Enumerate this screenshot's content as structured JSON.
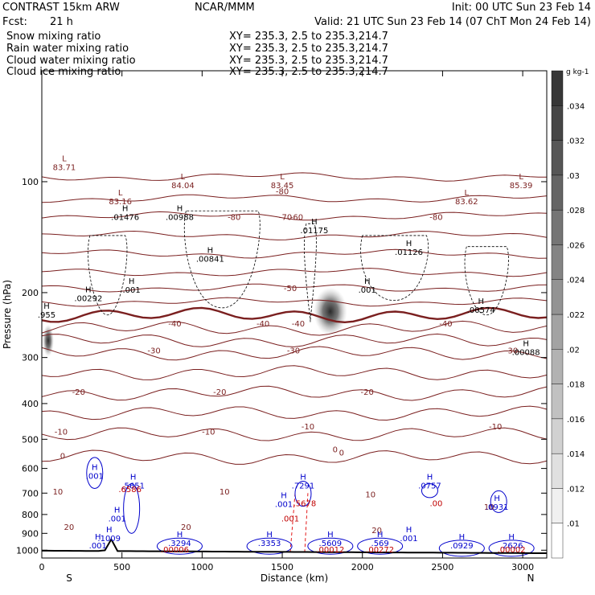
{
  "header": {
    "model": "CONTRAST 15km ARW",
    "org": "NCAR/MMM",
    "init": "Init: 00 UTC Sun 23 Feb 14",
    "fcst_label": "Fcst:",
    "fcst_value": "21 h",
    "valid": "Valid: 21 UTC Sun 23 Feb 14 (07 ChT Mon 24 Feb 14)",
    "fields": [
      {
        "label": "Snow mixing ratio",
        "xy": "XY= 235.3,   2.5 to 235.3,214.7",
        "color": "#000000"
      },
      {
        "label": "Rain water mixing ratio",
        "xy": "XY= 235.3,   2.5 to 235.3,214.7",
        "color": "#e00000"
      },
      {
        "label": "Cloud water mixing ratio",
        "xy": "XY= 235.3,   2.5 to 235.3,214.7",
        "color": "#0000cc"
      },
      {
        "label": "Cloud ice mixing ratio",
        "xy": "XY= 235.3,   2.5 to 235.3,214.7",
        "color": "#000000"
      }
    ]
  },
  "chart_data": {
    "type": "heatmap",
    "xlabel": "Distance (km)",
    "ylabel": "Pressure (hPa)",
    "xlim": [
      0,
      3150
    ],
    "ylim": [
      1050,
      50
    ],
    "y_scale": "log",
    "x_ticks": [
      0,
      500,
      1000,
      1500,
      2000,
      2500,
      3000
    ],
    "y_ticks": [
      100,
      200,
      300,
      400,
      500,
      600,
      700,
      800,
      900,
      1000
    ],
    "end_labels": {
      "left": "S",
      "right": "N"
    },
    "colorbar": {
      "unit": "g kg-1",
      "ticks": [
        0.01,
        0.012,
        0.014,
        0.016,
        0.018,
        0.02,
        0.022,
        0.024,
        0.026,
        0.028,
        0.03,
        0.032,
        0.034
      ],
      "tick_labels": [
        ".01",
        ".012",
        ".014",
        ".016",
        ".018",
        ".02",
        ".022",
        ".024",
        ".026",
        ".028",
        ".03",
        ".032",
        ".034"
      ]
    },
    "temperature_labels": [
      {
        "x": 1500,
        "p": 108,
        "text": "-80"
      },
      {
        "x": 1200,
        "p": 127,
        "text": "-80"
      },
      {
        "x": 2460,
        "p": 127,
        "text": "-80"
      },
      {
        "x": 1520,
        "p": 127,
        "text": "-70"
      },
      {
        "x": 1590,
        "p": 127,
        "text": "-60"
      },
      {
        "x": 1550,
        "p": 198,
        "text": "-50"
      },
      {
        "x": 830,
        "p": 247,
        "text": "-40"
      },
      {
        "x": 1380,
        "p": 247,
        "text": "-40"
      },
      {
        "x": 1600,
        "p": 247,
        "text": "-40"
      },
      {
        "x": 2520,
        "p": 247,
        "text": "-40"
      },
      {
        "x": 700,
        "p": 292,
        "text": "-30"
      },
      {
        "x": 1570,
        "p": 292,
        "text": "-30"
      },
      {
        "x": 2930,
        "p": 292,
        "text": "-30"
      },
      {
        "x": 230,
        "p": 379,
        "text": "-20"
      },
      {
        "x": 1110,
        "p": 379,
        "text": "-20"
      },
      {
        "x": 2030,
        "p": 379,
        "text": "-20"
      },
      {
        "x": 120,
        "p": 485,
        "text": "-10"
      },
      {
        "x": 1040,
        "p": 485,
        "text": "-10"
      },
      {
        "x": 1660,
        "p": 470,
        "text": "-10"
      },
      {
        "x": 2830,
        "p": 470,
        "text": "-10"
      },
      {
        "x": 130,
        "p": 565,
        "text": "0"
      },
      {
        "x": 1870,
        "p": 553,
        "text": "0"
      },
      {
        "x": 1830,
        "p": 542,
        "text": "0"
      },
      {
        "x": 100,
        "p": 706,
        "text": "10"
      },
      {
        "x": 1140,
        "p": 706,
        "text": "10"
      },
      {
        "x": 2050,
        "p": 719,
        "text": "10"
      },
      {
        "x": 2790,
        "p": 776,
        "text": "10"
      },
      {
        "x": 170,
        "p": 880,
        "text": "20"
      },
      {
        "x": 900,
        "p": 880,
        "text": "20"
      },
      {
        "x": 2090,
        "p": 899,
        "text": "20"
      }
    ],
    "isotherms": [
      {
        "t": -80,
        "p": 97
      },
      {
        "t": -70,
        "p": 111
      },
      {
        "t": -60,
        "p": 124
      },
      {
        "t": -50,
        "p": 140
      },
      {
        "t": -40,
        "p": 157
      },
      {
        "t": -30,
        "p": 176
      },
      {
        "t": -20,
        "p": 194
      },
      {
        "t": -10,
        "p": 212
      },
      {
        "t": 0,
        "p": 230
      },
      {
        "t": 10,
        "p": 250
      },
      {
        "t": 20,
        "p": 270
      },
      {
        "t": 30,
        "p": 292
      },
      {
        "t": 40,
        "p": 330
      },
      {
        "t": 50,
        "p": 375
      },
      {
        "t": 60,
        "p": 425
      },
      {
        "t": 70,
        "p": 485
      },
      {
        "t": 80,
        "p": 560
      }
    ],
    "snow_blobs": [
      {
        "x": 1800,
        "p": 225,
        "w": 170,
        "h": 60,
        "max": 0.035
      },
      {
        "x": 40,
        "p": 270,
        "w": 30,
        "h": 40,
        "max": 0.03
      }
    ],
    "snow_extrema": [
      {
        "x": 140,
        "p": 93,
        "text": "83.71"
      },
      {
        "x": 490,
        "p": 115,
        "text": "83.16"
      },
      {
        "x": 880,
        "p": 104,
        "text": "84.04"
      },
      {
        "x": 1500,
        "p": 104,
        "text": "83.45"
      },
      {
        "x": 2650,
        "p": 115,
        "text": "83.62"
      },
      {
        "x": 2990,
        "p": 104,
        "text": "85.39"
      }
    ],
    "ice_extrema": [
      {
        "x": 520,
        "p": 127,
        "text": ".01476"
      },
      {
        "x": 860,
        "p": 127,
        "text": ".00988"
      },
      {
        "x": 1700,
        "p": 138,
        "text": ".01175"
      },
      {
        "x": 2290,
        "p": 158,
        "text": ".01126"
      },
      {
        "x": 1050,
        "p": 165,
        "text": ".00841"
      },
      {
        "x": 290,
        "p": 211,
        "text": ".00292"
      },
      {
        "x": 2740,
        "p": 227,
        "text": ".00574"
      },
      {
        "x": 3020,
        "p": 295,
        "text": ".00088"
      },
      {
        "x": 30,
        "p": 234,
        "text": ".955"
      },
      {
        "x": 560,
        "p": 200,
        "text": ".001"
      },
      {
        "x": 2030,
        "p": 200,
        "text": ".001"
      }
    ],
    "cloud_water_extrema": [
      {
        "x": 330,
        "p": 640,
        "text": ".001"
      },
      {
        "x": 570,
        "p": 680,
        "text": ".5651"
      },
      {
        "x": 1630,
        "p": 680,
        "text": ".7291"
      },
      {
        "x": 1510,
        "p": 763,
        "text": ".001"
      },
      {
        "x": 2420,
        "p": 680,
        "text": ".0757"
      },
      {
        "x": 2840,
        "p": 776,
        "text": ".0931"
      },
      {
        "x": 470,
        "p": 835,
        "text": ".001"
      },
      {
        "x": 420,
        "p": 944,
        "text": ".1009"
      },
      {
        "x": 350,
        "p": 988,
        "text": ".001"
      },
      {
        "x": 860,
        "p": 975,
        "text": ".3294"
      },
      {
        "x": 1420,
        "p": 975,
        "text": ".3353"
      },
      {
        "x": 1800,
        "p": 975,
        "text": ".5609"
      },
      {
        "x": 2110,
        "p": 975,
        "text": ".569"
      },
      {
        "x": 2290,
        "p": 944,
        "text": ".001"
      },
      {
        "x": 2620,
        "p": 988,
        "text": ".0929"
      },
      {
        "x": 2930,
        "p": 988,
        "text": ".2626"
      }
    ],
    "rain_extrema": [
      {
        "x": 550,
        "p": 695,
        "text": ".6586"
      },
      {
        "x": 1640,
        "p": 760,
        "text": ".5678"
      },
      {
        "x": 2460,
        "p": 760,
        "text": ".00"
      },
      {
        "x": 1550,
        "p": 835,
        "text": ".001"
      },
      {
        "x": 830,
        "p": 1014,
        "text": ".00006"
      },
      {
        "x": 1800,
        "p": 1014,
        "text": ".00012"
      },
      {
        "x": 2110,
        "p": 1014,
        "text": ".00272"
      },
      {
        "x": 2930,
        "p": 1014,
        "text": ".00002"
      }
    ]
  }
}
